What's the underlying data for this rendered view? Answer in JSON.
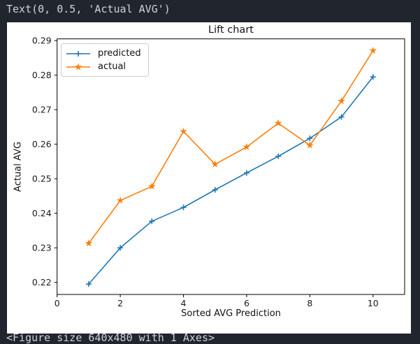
{
  "console": {
    "top_text": "Text(0, 0.5, 'Actual AVG')",
    "bottom_text": "<Figure size 640x480 with 1 Axes>",
    "bg_color": "#20252e",
    "text_color": "#cfd4da"
  },
  "figure": {
    "bg_color": "#ffffff"
  },
  "chart_data": {
    "type": "line",
    "title": "Lift chart",
    "xlabel": "Sorted AVG Prediction",
    "ylabel": "Actual AVG",
    "x": [
      1,
      2,
      3,
      4,
      5,
      6,
      7,
      8,
      9,
      10
    ],
    "series": [
      {
        "name": "predicted",
        "color": "#1f77b4",
        "marker": "plus",
        "values": [
          0.2195,
          0.23,
          0.2377,
          0.2417,
          0.2468,
          0.2517,
          0.2565,
          0.2617,
          0.2679,
          0.2795
        ]
      },
      {
        "name": "actual",
        "color": "#ff7f0e",
        "marker": "star",
        "values": [
          0.2313,
          0.2437,
          0.2478,
          0.2637,
          0.2542,
          0.2592,
          0.2661,
          0.2597,
          0.2725,
          0.2871
        ]
      }
    ],
    "xlim": [
      0,
      11
    ],
    "ylim": [
      0.2165,
      0.2905
    ],
    "xticks": [
      0,
      2,
      4,
      6,
      8,
      10
    ],
    "xtick_labels": [
      "0",
      "2",
      "4",
      "6",
      "8",
      "10"
    ],
    "yticks": [
      0.22,
      0.23,
      0.24,
      0.25,
      0.26,
      0.27,
      0.28,
      0.29
    ],
    "ytick_labels": [
      "0.22",
      "0.23",
      "0.24",
      "0.25",
      "0.26",
      "0.27",
      "0.28",
      "0.29"
    ],
    "legend_position": "upper left",
    "grid": false,
    "spine_color": "#000000",
    "tick_label_color": "#1a1a1a"
  }
}
